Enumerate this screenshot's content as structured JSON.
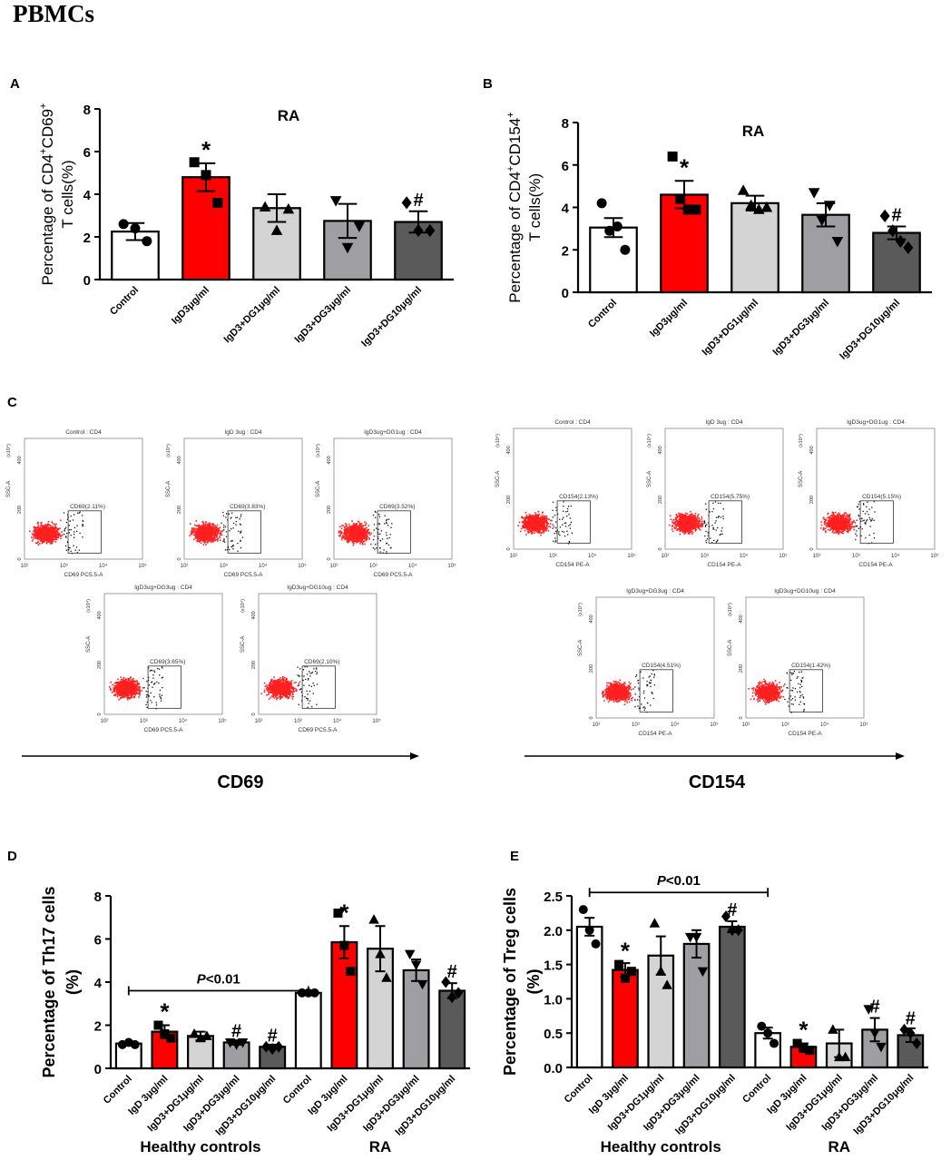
{
  "figure_title": "PBMCs",
  "panel_labels": {
    "A": "A",
    "B": "B",
    "C": "C",
    "D": "D",
    "E": "E"
  },
  "colors": {
    "control": "#ffffff",
    "igd": "#ff0000",
    "dg1": "#d4d4d4",
    "dg3": "#9f9fa3",
    "dg10": "#5a5a5a",
    "gate_dots": "#ff2020"
  },
  "chart_data": [
    {
      "id": "A",
      "type": "bar",
      "title": "RA",
      "ylabel_line1": "Percentage of CD4",
      "ylabel_sup1": "+",
      "ylabel_mid": "CD69",
      "ylabel_sup2": "+",
      "ylabel_line2": "T  cells(%)",
      "ylim": [
        0,
        8
      ],
      "yticks": [
        "0",
        "2",
        "4",
        "6",
        "8"
      ],
      "categories": [
        "Control",
        "IgD3μg/ml",
        "IgD3+DG1μg/ml",
        "IgD3+DG3μg/ml",
        "IgD3+DG10μg/ml"
      ],
      "values": [
        2.25,
        4.8,
        3.35,
        2.75,
        2.7
      ],
      "errors": [
        0.4,
        0.65,
        0.65,
        0.8,
        0.5
      ],
      "points": [
        [
          2.6,
          2.4,
          1.8
        ],
        [
          5.5,
          4.9,
          3.6
        ],
        [
          3.4,
          2.3,
          3.3
        ],
        [
          3.7,
          1.5,
          2.5
        ],
        [
          3.6,
          2.3,
          2.3
        ]
      ],
      "markers": [
        "circle",
        "square",
        "triangle-up",
        "triangle-down",
        "diamond"
      ],
      "annotations": [
        "",
        "*",
        "",
        "",
        "#"
      ]
    },
    {
      "id": "B",
      "type": "bar",
      "title": "RA",
      "ylabel_line1": "Percentage of CD4",
      "ylabel_sup1": "+",
      "ylabel_mid": "CD154",
      "ylabel_sup2": "+",
      "ylabel_line2": "T  cells(%)",
      "ylim": [
        0,
        8
      ],
      "yticks": [
        "0",
        "2",
        "4",
        "6",
        "8"
      ],
      "categories": [
        "Control",
        "IgD3μg/ml",
        "IgD3+DG1μg/ml",
        "IgD3+DG3μg/ml",
        "IgD3+DG10μg/ml"
      ],
      "values": [
        3.05,
        4.6,
        4.2,
        3.65,
        2.8
      ],
      "errors": [
        0.45,
        0.65,
        0.35,
        0.55,
        0.3
      ],
      "points": [
        [
          4.2,
          2.9,
          3.1,
          2.0
        ],
        [
          6.4,
          4.4,
          3.9,
          3.9
        ],
        [
          4.8,
          4.1,
          3.9,
          4.0
        ],
        [
          4.7,
          3.4,
          4.1,
          2.4
        ],
        [
          3.6,
          2.9,
          2.4,
          2.1
        ]
      ],
      "markers": [
        "circle",
        "square",
        "triangle-up",
        "triangle-down",
        "diamond"
      ],
      "annotations": [
        "",
        "*",
        "",
        "",
        "#"
      ]
    },
    {
      "id": "D",
      "type": "bar",
      "title": "",
      "ylabel_line1": "Percentage of Th17 cells",
      "ylabel_line2": "(%)",
      "ylim": [
        0,
        8
      ],
      "yticks": [
        "0",
        "2",
        "4",
        "6",
        "8"
      ],
      "categories": [
        "Control",
        "IgD 3μg/ml",
        "IgD3+DG1μg/ml",
        "IgD3+DG3μg/ml",
        "IgD3+DG10μg/ml",
        "Control",
        "IgD 3μg/ml",
        "IgD3+DG1μg/ml",
        "IgD3+DG3μg/ml",
        "IgD3+DG10μg/ml"
      ],
      "values": [
        1.15,
        1.7,
        1.5,
        1.2,
        1.0,
        3.5,
        5.85,
        5.55,
        4.55,
        3.6
      ],
      "errors": [
        0.05,
        0.3,
        0.2,
        0.1,
        0.1,
        0.05,
        0.75,
        1.05,
        0.5,
        0.35
      ],
      "points": [
        [
          1.1,
          1.2,
          1.1
        ],
        [
          2.0,
          1.6,
          1.4
        ],
        [
          1.6,
          1.4,
          1.5
        ],
        [
          1.2,
          1.1,
          1.2
        ],
        [
          1.0,
          0.9,
          1.0
        ],
        [
          3.5,
          3.5,
          3.5
        ],
        [
          7.2,
          5.7,
          4.5
        ],
        [
          6.9,
          5.3,
          4.2
        ],
        [
          5.3,
          4.8,
          3.9
        ],
        [
          4.0,
          3.3,
          3.5
        ]
      ],
      "markers": [
        "circle",
        "square",
        "triangle-up",
        "triangle-down",
        "diamond",
        "circle",
        "square",
        "triangle-up",
        "triangle-down",
        "diamond"
      ],
      "annotations": [
        "",
        "*",
        "",
        "#",
        "#",
        "",
        "*",
        "",
        "",
        "#"
      ],
      "bracket_label": "P<0.01",
      "bracket_left": "Control",
      "bracket_right": "Control",
      "groups": [
        "Healthy controls",
        "RA"
      ]
    },
    {
      "id": "E",
      "type": "bar",
      "title": "",
      "ylabel_line1": "Percentage of Treg cells",
      "ylabel_line2": "(%)",
      "ylim": [
        0,
        2.5
      ],
      "yticks": [
        "0.0",
        "0.5",
        "1.0",
        "1.5",
        "2.0",
        "2.5"
      ],
      "categories": [
        "Control",
        "IgD 3μg/ml",
        "IgD3+DG1μg/ml",
        "IgD3+DG3μg/ml",
        "IgD3+DG10μg/ml",
        "Control",
        "IgD 3μg/ml",
        "IgD3+DG1μg/ml",
        "IgD3+DG3μg/ml",
        "IgD3+DG10μg/ml"
      ],
      "values": [
        2.05,
        1.42,
        1.63,
        1.8,
        2.05,
        0.5,
        0.3,
        0.35,
        0.55,
        0.47
      ],
      "errors": [
        0.13,
        0.1,
        0.28,
        0.2,
        0.08,
        0.08,
        0.05,
        0.2,
        0.17,
        0.1
      ],
      "points": [
        [
          2.3,
          2.0,
          1.8
        ],
        [
          1.5,
          1.3,
          1.4
        ],
        [
          2.1,
          1.4,
          1.2
        ],
        [
          1.9,
          1.9,
          1.4
        ],
        [
          2.2,
          2.0,
          2.0
        ],
        [
          0.6,
          0.5,
          0.35
        ],
        [
          0.35,
          0.28,
          0.25
        ],
        [
          0.55,
          0.15,
          0.15
        ],
        [
          0.85,
          0.5,
          0.3
        ],
        [
          0.55,
          0.5,
          0.35
        ]
      ],
      "markers": [
        "circle",
        "square",
        "triangle-up",
        "triangle-down",
        "diamond",
        "circle",
        "square",
        "triangle-up",
        "triangle-down",
        "diamond"
      ],
      "annotations": [
        "",
        "*",
        "",
        "",
        "#",
        "",
        "*",
        "",
        "#",
        "#"
      ],
      "bracket_label": "P<0.01",
      "bracket_left": "Control",
      "bracket_right": "Control",
      "groups": [
        "Healthy controls",
        "RA"
      ]
    },
    {
      "id": "C",
      "type": "scatter",
      "flow_axis_labels": [
        "CD69",
        "CD154"
      ],
      "cd69_plots": [
        {
          "title": "Control : CD4",
          "gate_label": "CD69(2.11%)",
          "xlabel": "CD69 PC5.5-A",
          "ylabel": "SSC-A",
          "exponent": "(x10⁴)"
        },
        {
          "title": "IgD 3ug : CD4",
          "gate_label": "CD69(3.83%)",
          "xlabel": "CD69 PC5.5-A",
          "ylabel": "SSC-A",
          "exponent": "(x10⁴)"
        },
        {
          "title": "IgD3ug+DG1ug : CD4",
          "gate_label": "CD69(3.52%)",
          "xlabel": "CD69 PC5.5-A",
          "ylabel": "SSC-A",
          "exponent": "(x10⁴)"
        },
        {
          "title": "IgD3ug+DG3ug : CD4",
          "gate_label": "CD69(3.65%)",
          "xlabel": "CD69 PC5.5-A",
          "ylabel": "SSC-A",
          "exponent": "(x10⁴)"
        },
        {
          "title": "IgD3ug+DG10ug : CD4",
          "gate_label": "CD69(2.10%)",
          "xlabel": "CD69 PC5.5-A",
          "ylabel": "SSC-A",
          "exponent": "(x10⁴)"
        }
      ],
      "cd154_plots": [
        {
          "title": "Control : CD4",
          "gate_label": "CD154(2.13%)",
          "xlabel": "CD154 PE-A",
          "ylabel": "SSC-A",
          "exponent": "(x10⁴)"
        },
        {
          "title": "IgD 3ug : CD4",
          "gate_label": "CD154(5.75%)",
          "xlabel": "CD154 PE-A",
          "ylabel": "SSC-A",
          "exponent": "(x10⁴)"
        },
        {
          "title": "IgD3ug+DG1ug : CD4",
          "gate_label": "CD154(5.15%)",
          "xlabel": "CD154 PE-A",
          "ylabel": "SSC-A",
          "exponent": "(x10⁴)"
        },
        {
          "title": "IgD3ug+DG3ug : CD4",
          "gate_label": "CD154(4.51%)",
          "xlabel": "CD154 PE-A",
          "ylabel": "SSC-A",
          "exponent": "(x10⁴)"
        },
        {
          "title": "IgD3ug+DG10ug : CD4",
          "gate_label": "CD154(1.42%)",
          "xlabel": "CD154 PE-A",
          "ylabel": "SSC-A",
          "exponent": "(x10⁴)"
        }
      ],
      "yticks": [
        "0",
        "200",
        "400"
      ],
      "xticks": [
        "10²",
        "10³",
        "10⁴",
        "10⁵"
      ]
    }
  ]
}
